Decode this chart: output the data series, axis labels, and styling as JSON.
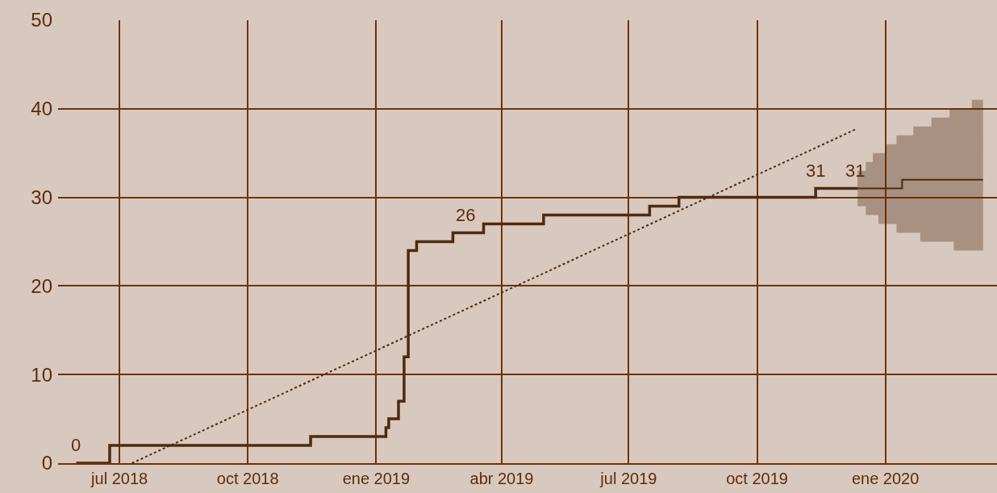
{
  "chart_data": {
    "type": "step",
    "xlim": [
      "2018-05-18",
      "2020-03-21"
    ],
    "xticks": [
      {
        "value": "2018-07-01",
        "label": "jul 2018"
      },
      {
        "value": "2018-10-01",
        "label": "oct 2018"
      },
      {
        "value": "2019-01-01",
        "label": "ene 2019"
      },
      {
        "value": "2019-04-01",
        "label": "abr 2019"
      },
      {
        "value": "2019-07-01",
        "label": "jul 2019"
      },
      {
        "value": "2019-10-01",
        "label": "oct 2019"
      },
      {
        "value": "2020-01-01",
        "label": "ene 2020"
      }
    ],
    "ylim": [
      0,
      50
    ],
    "yticks": [
      0,
      10,
      20,
      30,
      40,
      50
    ],
    "grid": true,
    "series": [
      {
        "color": "#4e2a10",
        "x": [
          "2018-05-31",
          "2018-06-24",
          "2018-11-15",
          "2019-01-08",
          "2019-01-10",
          "2019-01-17",
          "2019-01-21",
          "2019-01-24",
          "2019-01-30",
          "2019-02-25",
          "2019-03-19",
          "2019-05-01",
          "2019-07-16",
          "2019-08-06",
          "2019-11-12",
          "2019-12-12"
        ],
        "values": [
          0,
          2,
          3,
          4,
          5,
          7,
          12,
          24,
          25,
          26,
          27,
          28,
          29,
          30,
          31,
          31
        ]
      },
      {
        "color": "#4e2a10",
        "x": [
          "2019-12-12",
          "2019-12-18",
          "2019-12-23",
          "2019-12-27",
          "2020-01-01",
          "2020-01-09",
          "2020-01-13",
          "2020-01-21",
          "2020-01-26",
          "2020-02-03",
          "2020-02-16",
          "2020-02-19",
          "2020-03-03",
          "2020-03-11"
        ],
        "values": [
          31,
          31,
          31,
          31,
          31,
          31,
          32,
          32,
          32,
          32,
          32,
          32,
          32,
          32
        ],
        "lower": [
          29,
          28,
          28,
          27,
          27,
          26,
          26,
          26,
          25,
          25,
          25,
          24,
          24,
          24
        ],
        "upper": [
          33,
          34,
          35,
          35,
          36,
          37,
          37,
          38,
          38,
          39,
          40,
          40,
          41,
          41
        ]
      },
      {
        "type": "line",
        "line_style": "dotted",
        "color": "#4e2a10",
        "x": [
          "2018-07-10",
          "2019-12-11"
        ],
        "values": [
          0,
          37.7
        ]
      }
    ],
    "annotations": [
      {
        "text": "0",
        "x": "2018-05-31",
        "y": 0
      },
      {
        "text": "26",
        "x": "2019-03-06",
        "y": 26
      },
      {
        "text": "31",
        "x": "2019-11-12",
        "y": 31
      },
      {
        "text": "31",
        "x": "2019-12-10",
        "y": 31
      }
    ]
  }
}
